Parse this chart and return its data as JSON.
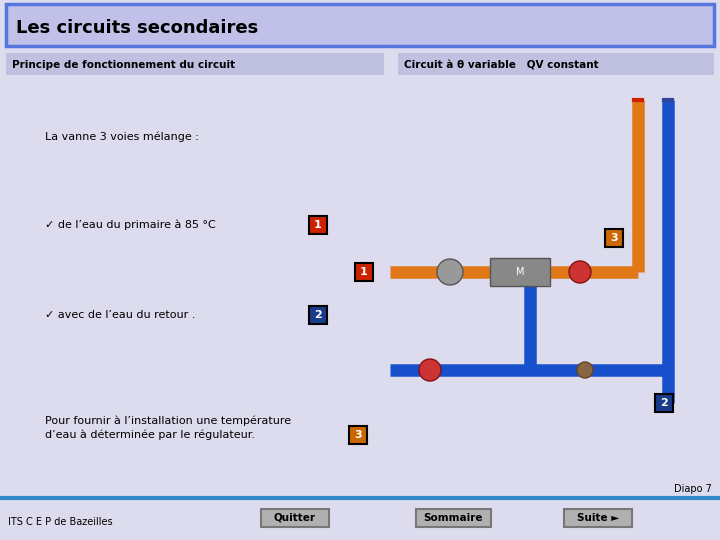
{
  "title": "Les circuits secondaires",
  "subtitle_left": "Principe de fonctionnement du circuit",
  "subtitle_right": "Circuit à θ variable   QV constant",
  "text1": "La vanne 3 voies mélange :",
  "bullet1": "✓ de l’eau du primaire à 85 °C",
  "bullet2": "✓ avec de l’eau du retour .",
  "text2": "Pour fournir à l’installation une température\nd’eau à déterminée par le régulateur.",
  "footer_left": "ITS C E P de Bazeilles",
  "footer_btn1": "Quitter",
  "footer_btn2": "Sommaire",
  "footer_btn3": "Suite ►",
  "footer_diapo": "Diapo 7",
  "bg_color": "#dcdcee",
  "title_bg": "#c0c0e8",
  "title_border": "#5577dd",
  "subtitle_bg": "#c0c0e0",
  "orange": "#e07818",
  "blue": "#1850cc",
  "red_box": "#cc2200",
  "blue_box": "#1a3a8a",
  "orange_box": "#cc6600",
  "footer_line": "#3388cc",
  "btn_bg": "#aaaaaa",
  "btn_border": "#777777",
  "white": "#ffffff"
}
